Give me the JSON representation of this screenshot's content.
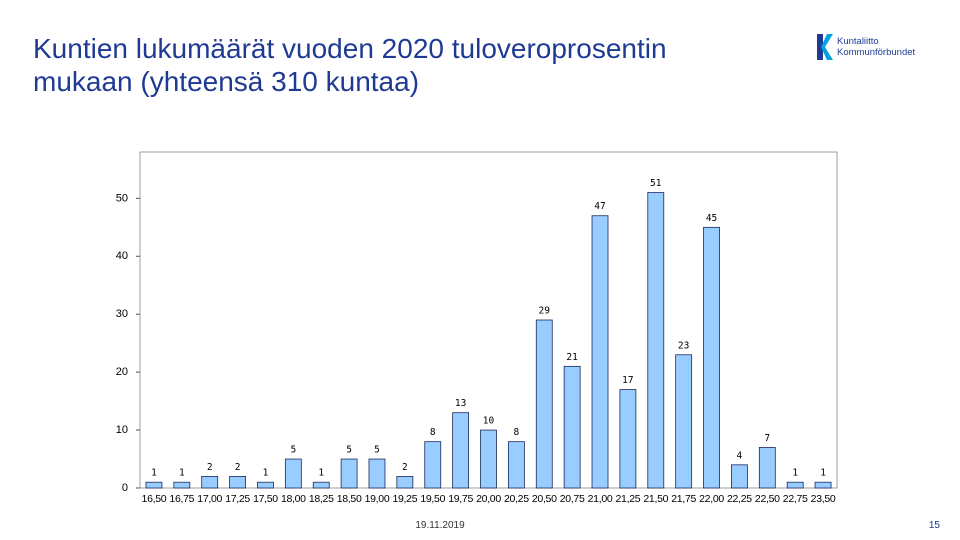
{
  "chart_data": {
    "type": "bar",
    "title": "Kuntien lukumäärät vuoden 2020 tuloveroprosentin mukaan (yhteensä 310 kuntaa)",
    "categories": [
      "16,50",
      "16,75",
      "17,00",
      "17,25",
      "17,50",
      "18,00",
      "18,25",
      "18,50",
      "19,00",
      "19,25",
      "19,50",
      "19,75",
      "20,00",
      "20,25",
      "20,50",
      "20,75",
      "21,00",
      "21,25",
      "21,50",
      "21,75",
      "22,00",
      "22,25",
      "22,50",
      "22,75",
      "23,50"
    ],
    "values": [
      1,
      1,
      2,
      2,
      1,
      5,
      1,
      5,
      5,
      2,
      8,
      13,
      10,
      8,
      29,
      21,
      47,
      17,
      51,
      23,
      45,
      4,
      7,
      1,
      1
    ],
    "color": "#99ccff",
    "ylim": [
      0,
      58
    ],
    "yticks": [
      0,
      10,
      20,
      30,
      40,
      50
    ],
    "grid": false
  },
  "logo": {
    "line1": "Kuntaliitto",
    "line2": "Kommunförbundet"
  },
  "footer": {
    "date": "19.11.2019",
    "page": "15"
  }
}
